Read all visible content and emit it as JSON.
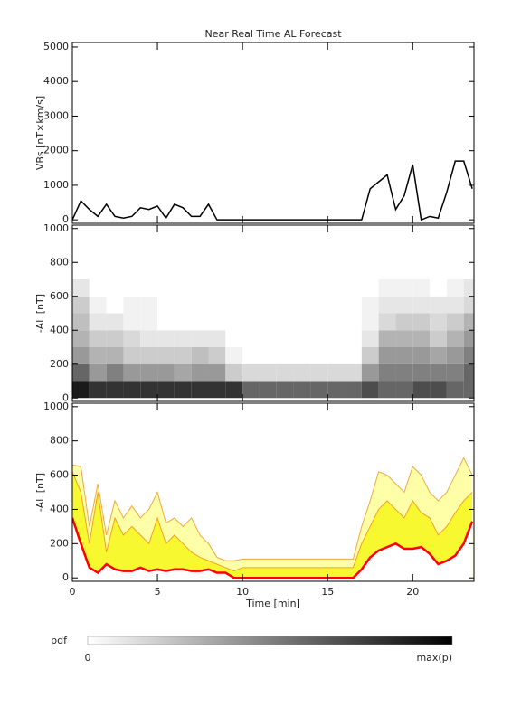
{
  "chart_data": [
    {
      "type": "line",
      "title": "Near Real Time AL Forecast",
      "ylabel": "VBs [nT×km/s]",
      "x": [
        0,
        0.5,
        1,
        1.5,
        2,
        2.5,
        3,
        3.5,
        4,
        4.5,
        5,
        5.5,
        6,
        6.5,
        7,
        7.5,
        8,
        8.5,
        9,
        9.5,
        10,
        10.5,
        11,
        11.5,
        12,
        12.5,
        13,
        13.5,
        14,
        14.5,
        15,
        15.5,
        16,
        16.5,
        17,
        17.5,
        18,
        18.5,
        19,
        19.5,
        20,
        20.5,
        21,
        21.5,
        22,
        22.5,
        23,
        23.5
      ],
      "series": [
        {
          "color": "#000000",
          "values": [
            0,
            550,
            300,
            100,
            450,
            100,
            50,
            100,
            350,
            300,
            400,
            50,
            450,
            350,
            100,
            100,
            450,
            0,
            0,
            0,
            0,
            0,
            0,
            0,
            0,
            0,
            0,
            0,
            0,
            0,
            0,
            0,
            0,
            0,
            0,
            900,
            1100,
            1300,
            300,
            700,
            1600,
            0,
            100,
            50,
            800,
            1700,
            1700,
            900
          ]
        }
      ],
      "xlim": [
        0,
        23.6
      ],
      "ylim": [
        -100,
        5130
      ],
      "xticks": [
        0,
        5,
        10,
        15,
        20
      ],
      "yticks": [
        0,
        1000,
        2000,
        3000,
        4000,
        5000
      ],
      "show_xticklabels": false
    },
    {
      "type": "heatmap",
      "ylabel": "-AL [nT]",
      "xbins": [
        0,
        1,
        2,
        3,
        4,
        5,
        6,
        7,
        8,
        9,
        10,
        11,
        12,
        13,
        14,
        15,
        16,
        17,
        18,
        19,
        20,
        21,
        22,
        23,
        24
      ],
      "ybins": [
        0,
        100,
        200,
        300,
        400,
        500,
        600,
        700
      ],
      "z": [
        [
          0.9,
          0.8,
          0.8,
          0.8,
          0.8,
          0.8,
          0.8,
          0.8,
          0.8,
          0.8,
          0.6,
          0.6,
          0.6,
          0.6,
          0.6,
          0.6,
          0.6,
          0.7,
          0.6,
          0.6,
          0.7,
          0.7,
          0.6,
          0.6
        ],
        [
          0.6,
          0.4,
          0.5,
          0.4,
          0.4,
          0.4,
          0.35,
          0.4,
          0.4,
          0.2,
          0.15,
          0.15,
          0.15,
          0.15,
          0.15,
          0.15,
          0.15,
          0.4,
          0.5,
          0.5,
          0.5,
          0.5,
          0.5,
          0.6
        ],
        [
          0.4,
          0.3,
          0.3,
          0.2,
          0.2,
          0.2,
          0.2,
          0.25,
          0.2,
          0.05,
          0,
          0,
          0,
          0,
          0,
          0,
          0,
          0.2,
          0.4,
          0.4,
          0.4,
          0.35,
          0.4,
          0.5
        ],
        [
          0.3,
          0.2,
          0.2,
          0.15,
          0.1,
          0.1,
          0.1,
          0.1,
          0.1,
          0,
          0,
          0,
          0,
          0,
          0,
          0,
          0,
          0.1,
          0.3,
          0.3,
          0.3,
          0.2,
          0.3,
          0.4
        ],
        [
          0.25,
          0.1,
          0.1,
          0.05,
          0.05,
          0,
          0,
          0,
          0,
          0,
          0,
          0,
          0,
          0,
          0,
          0,
          0,
          0.05,
          0.15,
          0.2,
          0.2,
          0.15,
          0.2,
          0.3
        ],
        [
          0.2,
          0.05,
          0,
          0.05,
          0.05,
          0,
          0,
          0,
          0,
          0,
          0,
          0,
          0,
          0,
          0,
          0,
          0,
          0.05,
          0.1,
          0.1,
          0.1,
          0.1,
          0.1,
          0.15
        ],
        [
          0.1,
          0,
          0,
          0,
          0,
          0,
          0,
          0,
          0,
          0,
          0,
          0,
          0,
          0,
          0,
          0,
          0,
          0,
          0.05,
          0.05,
          0.05,
          0,
          0.05,
          0.1
        ]
      ],
      "colormap": [
        "#ffffff",
        "#000000"
      ],
      "xlim": [
        0,
        23.6
      ],
      "ylim": [
        -20,
        1020
      ],
      "xticks": [
        0,
        5,
        10,
        15,
        20
      ],
      "yticks": [
        0,
        200,
        400,
        600,
        800,
        1000
      ],
      "show_xticklabels": false
    },
    {
      "type": "band",
      "ylabel": "-AL [nT]",
      "xlabel": "Time [min]",
      "x": [
        0,
        0.5,
        1,
        1.5,
        2,
        2.5,
        3,
        3.5,
        4,
        4.5,
        5,
        5.5,
        6,
        6.5,
        7,
        7.5,
        8,
        8.5,
        9,
        9.5,
        10,
        10.5,
        11,
        11.5,
        12,
        12.5,
        13,
        13.5,
        14,
        14.5,
        15,
        15.5,
        16,
        16.5,
        17,
        17.5,
        18,
        18.5,
        19,
        19.5,
        20,
        20.5,
        21,
        21.5,
        22,
        22.5,
        23,
        23.5
      ],
      "series": [
        {
          "color": "#f0a840",
          "fill": "#ffffa8",
          "values": [
            660,
            650,
            300,
            550,
            250,
            450,
            350,
            420,
            350,
            400,
            500,
            320,
            350,
            300,
            350,
            250,
            200,
            120,
            100,
            100,
            110,
            110,
            110,
            110,
            110,
            110,
            110,
            110,
            110,
            110,
            110,
            110,
            110,
            110,
            300,
            450,
            620,
            600,
            550,
            500,
            650,
            600,
            500,
            450,
            500,
            600,
            700,
            600
          ]
        },
        {
          "color": "#f0a030",
          "fill": "#f8f830",
          "values": [
            620,
            500,
            200,
            500,
            150,
            350,
            250,
            300,
            250,
            200,
            350,
            200,
            250,
            200,
            150,
            120,
            100,
            80,
            60,
            40,
            60,
            60,
            60,
            60,
            60,
            60,
            60,
            60,
            60,
            60,
            60,
            60,
            60,
            60,
            200,
            300,
            400,
            450,
            400,
            350,
            450,
            380,
            350,
            250,
            300,
            380,
            450,
            500
          ]
        },
        {
          "color": "#ff0000",
          "fill": "#ffffff",
          "values": [
            350,
            200,
            60,
            30,
            80,
            50,
            40,
            40,
            60,
            40,
            50,
            40,
            50,
            50,
            40,
            40,
            50,
            30,
            30,
            0,
            0,
            0,
            0,
            0,
            0,
            0,
            0,
            0,
            0,
            0,
            0,
            0,
            0,
            0,
            50,
            120,
            160,
            180,
            200,
            170,
            170,
            180,
            140,
            80,
            100,
            130,
            200,
            330
          ]
        }
      ],
      "xlim": [
        0,
        23.6
      ],
      "ylim": [
        -20,
        1020
      ],
      "xticks": [
        0,
        5,
        10,
        15,
        20
      ],
      "yticks": [
        0,
        200,
        400,
        600,
        800,
        1000
      ],
      "show_xticklabels": true
    }
  ],
  "colorbar": {
    "label": "pdf",
    "min_label": "0",
    "max_label": "max(p)"
  }
}
